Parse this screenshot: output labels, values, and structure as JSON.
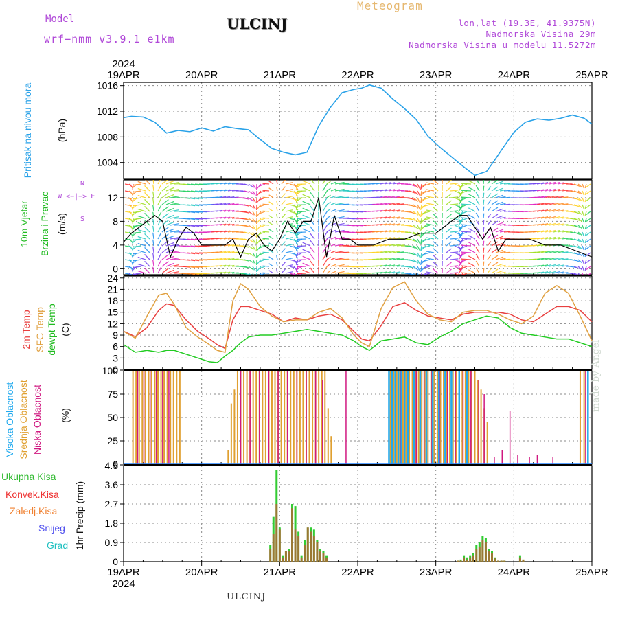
{
  "header": {
    "model_label": "Model",
    "model_name": "wrf−nmm_v3.9.1  e1km",
    "title": "ULCINJ",
    "meteogram_label": "Meteogram",
    "lonlat": "lon,lat (19.3E, 41.9375N)",
    "altitude": "Nadmorska Visina 29m",
    "model_altitude": "Nadmorska Visina u modelu 11.5272m"
  },
  "footer_city": "ULCINJ",
  "watermark": "made by Angel",
  "colors": {
    "pressure": "#2aa2e8",
    "temp2m": "#e84040",
    "sfctemp": "#e0a040",
    "dewpt": "#22cc22",
    "high_cloud": "#22aaee",
    "mid_cloud": "#e0a030",
    "low_cloud": "#d01880",
    "total_precip": "#33cc33",
    "conv_precip": "#ee3333",
    "strat_precip": "#f08030",
    "snow": "#5050ee",
    "graupel": "#20c0c0",
    "grid": "#888888"
  },
  "time_axis": {
    "year": "2024",
    "ticks": [
      "19APR",
      "20APR",
      "21APR",
      "22APR",
      "23APR",
      "24APR",
      "25APR"
    ]
  },
  "panels": {
    "pressure": {
      "label": "Pritisak na nivou mora",
      "unit": "(hPa)",
      "ticks": [
        1004,
        1008,
        1012,
        1016
      ]
    },
    "wind": {
      "label_1": "10m Vjetar",
      "label_2": "Brzina i Pravac",
      "unit": "(m/s)",
      "ticks": [
        0,
        4,
        8,
        12
      ],
      "compass_n": "N",
      "compass_s": "S",
      "compass_w": "W",
      "compass_e": "E",
      "compass_arrows": "<−|−>"
    },
    "temperature": {
      "label_1": "2m Temp",
      "label_2": "SFC Temp",
      "label_3": "dewpt Temp",
      "unit": "(C)",
      "ticks": [
        0,
        3,
        6,
        9,
        12,
        15,
        18,
        21,
        24
      ]
    },
    "cloud": {
      "label_1": "Visoka Oblacnost",
      "label_2": "Srednja Oblacnost",
      "label_3": "Niska Oblacnost",
      "unit": "(%)",
      "ticks": [
        0,
        25,
        50,
        75,
        100
      ]
    },
    "precip": {
      "label": "1hr Precip (mm)",
      "ticks": [
        0,
        0.9,
        1.8,
        2.7,
        3.6,
        4.5
      ],
      "legend": [
        "Ukupna Kisa",
        "Konvek.Kisa",
        "Zaledj.Kisa",
        "Snijeg",
        "Grad"
      ]
    }
  },
  "chart_data": [
    {
      "type": "line",
      "title": "",
      "xlabel": "",
      "ylabel": "Pritisak na nivou mora (hPa)",
      "x_unit": "days after 19APR 00Z",
      "ylim": [
        1001.5,
        1016.5
      ],
      "series": [
        {
          "name": "Pritisak na nivou mora",
          "x": [
            0,
            0.1,
            0.25,
            0.4,
            0.55,
            0.7,
            0.85,
            1.0,
            1.15,
            1.3,
            1.45,
            1.6,
            1.75,
            1.9,
            2.05,
            2.2,
            2.35,
            2.5,
            2.65,
            2.8,
            2.95,
            3.05,
            3.15,
            3.3,
            3.45,
            3.6,
            3.75,
            3.9,
            4.05,
            4.2,
            4.35,
            4.5,
            4.65,
            4.75,
            4.85,
            5.0,
            5.15,
            5.3,
            5.45,
            5.6,
            5.75,
            5.9,
            6.0
          ],
          "values": [
            1011,
            1011.2,
            1011.1,
            1010.3,
            1008.6,
            1009,
            1008.8,
            1009.4,
            1008.9,
            1009.6,
            1009.3,
            1009.1,
            1007.6,
            1006.2,
            1005.6,
            1005.2,
            1005.6,
            1009.7,
            1012.6,
            1014.9,
            1015.4,
            1015.6,
            1016.1,
            1015.6,
            1013.9,
            1012.4,
            1010.7,
            1008.1,
            1006.4,
            1004.9,
            1003.4,
            1002,
            1002.6,
            1004.3,
            1006.1,
            1008.7,
            1010.3,
            1010.8,
            1010.6,
            1010.9,
            1011.4,
            1010.9,
            1010
          ]
        }
      ],
      "grid": true
    },
    {
      "type": "line",
      "title": "",
      "xlabel": "",
      "ylabel": "10m Vjetar Brzina i Pravac (m/s)",
      "x_unit": "days after 19APR 00Z",
      "ylim": [
        -1,
        15
      ],
      "series": [
        {
          "name": "10m Vjetar",
          "x": [
            0,
            0.1,
            0.2,
            0.3,
            0.4,
            0.5,
            0.6,
            0.7,
            0.8,
            0.9,
            1.0,
            1.1,
            1.2,
            1.3,
            1.4,
            1.5,
            1.6,
            1.7,
            1.8,
            1.9,
            2.0,
            2.1,
            2.2,
            2.3,
            2.4,
            2.5,
            2.6,
            2.7,
            2.8,
            2.9,
            3.0,
            3.2,
            3.4,
            3.6,
            3.8,
            4.0,
            4.2,
            4.3,
            4.4,
            4.5,
            4.6,
            4.7,
            4.8,
            4.9,
            5.0,
            5.2,
            5.4,
            5.6,
            5.8,
            6.0
          ],
          "values": [
            4.5,
            6,
            7,
            8,
            9,
            8,
            2,
            5,
            7,
            6,
            4,
            4,
            4,
            4,
            5,
            2,
            5,
            6,
            4,
            3,
            5,
            8,
            6,
            8,
            8,
            12,
            2,
            9,
            5,
            5,
            4,
            4,
            5,
            5,
            6,
            6,
            8,
            9,
            9,
            7,
            5,
            7,
            3,
            5,
            5,
            5,
            4,
            4,
            3,
            2
          ]
        }
      ],
      "grid": true
    },
    {
      "type": "line",
      "title": "",
      "xlabel": "",
      "ylabel": "Temp (C)",
      "x_unit": "days after 19APR 00Z",
      "ylim": [
        0,
        24.5
      ],
      "series": [
        {
          "name": "2m Temp",
          "x": [
            0,
            0.15,
            0.3,
            0.45,
            0.55,
            0.65,
            0.8,
            0.95,
            1.1,
            1.2,
            1.3,
            1.4,
            1.5,
            1.6,
            1.75,
            1.9,
            2.05,
            2.2,
            2.35,
            2.5,
            2.65,
            2.8,
            2.95,
            3.05,
            3.15,
            3.3,
            3.45,
            3.6,
            3.75,
            3.9,
            4.05,
            4.2,
            4.35,
            4.5,
            4.65,
            4.8,
            4.95,
            5.1,
            5.25,
            5.4,
            5.55,
            5.7,
            5.85,
            6.0
          ],
          "values": [
            10,
            8.6,
            11,
            15.5,
            17.2,
            16.8,
            13,
            10,
            8,
            6.5,
            5.5,
            13,
            16.5,
            16.5,
            15.5,
            14.5,
            12.5,
            13.5,
            13,
            14,
            14.5,
            13,
            10,
            8,
            7.5,
            11.5,
            16.5,
            17.5,
            15.5,
            14,
            13.5,
            13,
            14.5,
            15,
            15,
            15,
            14.5,
            13,
            12.5,
            14.5,
            16.5,
            16.5,
            15.5,
            12.5
          ]
        },
        {
          "name": "SFC Temp",
          "x": [
            0,
            0.15,
            0.3,
            0.45,
            0.55,
            0.65,
            0.8,
            0.95,
            1.1,
            1.2,
            1.3,
            1.4,
            1.5,
            1.6,
            1.75,
            1.9,
            2.05,
            2.2,
            2.35,
            2.5,
            2.65,
            2.8,
            2.95,
            3.05,
            3.15,
            3.3,
            3.45,
            3.6,
            3.75,
            3.9,
            4.05,
            4.2,
            4.35,
            4.5,
            4.65,
            4.8,
            4.95,
            5.1,
            5.25,
            5.4,
            5.55,
            5.7,
            5.85,
            6.0
          ],
          "values": [
            10,
            8.2,
            14,
            19.5,
            20,
            17,
            11,
            8.5,
            6.5,
            5,
            4.5,
            18,
            22.5,
            21,
            16.5,
            14,
            12.5,
            13,
            13,
            15,
            16,
            13.5,
            9,
            7,
            6,
            16,
            21.5,
            23,
            18,
            14.5,
            13,
            12.5,
            15,
            15.5,
            15.5,
            14.5,
            13,
            12,
            14,
            20,
            22,
            20,
            14,
            7.5
          ]
        },
        {
          "name": "dewpt Temp",
          "x": [
            0,
            0.15,
            0.3,
            0.45,
            0.55,
            0.65,
            0.8,
            0.95,
            1.1,
            1.2,
            1.3,
            1.4,
            1.5,
            1.6,
            1.75,
            1.9,
            2.05,
            2.2,
            2.35,
            2.5,
            2.65,
            2.8,
            2.95,
            3.05,
            3.15,
            3.3,
            3.45,
            3.6,
            3.75,
            3.9,
            4.05,
            4.2,
            4.35,
            4.5,
            4.65,
            4.8,
            4.95,
            5.1,
            5.25,
            5.4,
            5.55,
            5.7,
            5.85,
            6.0
          ],
          "values": [
            6.5,
            4.5,
            5,
            4.5,
            5,
            5,
            4,
            3,
            2,
            1.8,
            3.5,
            5,
            7,
            8.5,
            9,
            9,
            9.5,
            10,
            10.5,
            10,
            9.5,
            9,
            7.5,
            6,
            5,
            7.5,
            8,
            8.5,
            7,
            6.5,
            8.5,
            10,
            12,
            13,
            14,
            13.5,
            11,
            9.5,
            9,
            8.5,
            8,
            8,
            7,
            6
          ]
        }
      ],
      "grid": true
    },
    {
      "type": "bar",
      "title": "",
      "xlabel": "",
      "ylabel": "Oblacnost (%)",
      "x_unit": "days after 19APR 00Z",
      "ylim": [
        0,
        100
      ],
      "series": [
        {
          "name": "Srednja Oblacnost",
          "x": [
            0.12,
            0.16,
            0.2,
            0.24,
            0.28,
            0.32,
            0.36,
            0.4,
            0.44,
            0.48,
            0.52,
            0.56,
            0.6,
            0.64,
            0.68,
            0.72,
            1.34,
            1.38,
            1.42,
            1.46,
            1.5,
            1.54,
            1.58,
            1.62,
            1.66,
            1.7,
            1.74,
            1.78,
            1.82,
            1.86,
            1.9,
            1.94,
            1.98,
            2.02,
            2.06,
            2.1,
            2.14,
            2.18,
            2.22,
            2.26,
            2.3,
            2.34,
            2.38,
            2.42,
            2.46,
            2.5,
            2.54,
            2.58,
            2.62,
            2.66,
            3.42,
            3.46,
            3.5,
            3.54,
            3.58,
            3.62,
            3.66,
            3.7,
            3.74,
            3.78,
            3.82,
            3.86,
            3.9,
            3.94,
            3.98,
            4.02,
            4.06,
            4.1,
            4.14,
            4.18,
            4.22,
            4.26,
            4.3,
            4.34,
            4.38,
            4.42,
            4.46,
            4.5,
            4.54,
            4.58,
            4.62,
            4.66,
            5.85,
            5.9,
            5.95
          ],
          "values": [
            100,
            100,
            100,
            100,
            100,
            100,
            100,
            100,
            100,
            100,
            100,
            100,
            100,
            100,
            100,
            100,
            15,
            65,
            80,
            100,
            100,
            100,
            100,
            100,
            100,
            100,
            100,
            100,
            100,
            100,
            100,
            100,
            100,
            100,
            100,
            100,
            100,
            100,
            100,
            100,
            100,
            100,
            100,
            100,
            100,
            100,
            100,
            100,
            60,
            30,
            100,
            100,
            100,
            100,
            100,
            100,
            100,
            100,
            100,
            100,
            100,
            100,
            100,
            100,
            100,
            100,
            100,
            100,
            100,
            100,
            100,
            100,
            100,
            100,
            100,
            100,
            100,
            100,
            90,
            80,
            60,
            45,
            100,
            100,
            100
          ]
        },
        {
          "name": "Niska Oblacnost",
          "x": [
            0.18,
            0.26,
            0.34,
            0.42,
            0.5,
            0.58,
            1.5,
            1.62,
            1.74,
            1.86,
            1.98,
            2.1,
            2.22,
            2.34,
            2.46,
            2.55,
            2.85,
            3.45,
            3.55,
            3.65,
            3.75,
            3.85,
            3.95,
            4.05,
            4.15,
            4.25,
            4.35,
            4.45,
            4.55,
            4.62,
            4.75,
            4.85,
            4.95,
            5.05,
            5.2,
            5.3,
            5.5,
            5.92
          ],
          "values": [
            100,
            100,
            100,
            100,
            100,
            100,
            100,
            100,
            100,
            100,
            100,
            100,
            100,
            100,
            100,
            90,
            100,
            100,
            100,
            100,
            100,
            100,
            100,
            100,
            100,
            100,
            100,
            100,
            90,
            75,
            8,
            15,
            57,
            10,
            8,
            10,
            8,
            100
          ]
        },
        {
          "name": "Visoka Oblacnost",
          "x": [
            3.4,
            3.44,
            3.48,
            3.52,
            3.56,
            3.6,
            3.64,
            3.72,
            3.8,
            3.88,
            3.96,
            4.04,
            4.12,
            4.2,
            4.3,
            4.4,
            5.95
          ],
          "values": [
            100,
            100,
            100,
            100,
            100,
            100,
            100,
            100,
            100,
            100,
            100,
            100,
            100,
            100,
            100,
            100,
            100
          ]
        }
      ],
      "grid": true
    },
    {
      "type": "bar",
      "title": "",
      "xlabel": "",
      "ylabel": "1hr Precip (mm)",
      "x_unit": "days after 19APR 00Z",
      "ylim": [
        0,
        4.5
      ],
      "series": [
        {
          "name": "Ukupna Kisa",
          "x": [
            1.88,
            1.92,
            1.96,
            2.0,
            2.04,
            2.08,
            2.12,
            2.16,
            2.2,
            2.24,
            2.28,
            2.32,
            2.36,
            2.4,
            2.44,
            2.48,
            2.52,
            2.56,
            2.6,
            4.28,
            4.32,
            4.36,
            4.4,
            4.44,
            4.48,
            4.52,
            4.56,
            4.6,
            4.64,
            4.68,
            4.72,
            4.76,
            4.8,
            4.84,
            4.88,
            5.08,
            5.12
          ],
          "values": [
            0.8,
            2.1,
            4.3,
            1.6,
            0.3,
            0.5,
            0.6,
            2.7,
            2.6,
            1.4,
            0.3,
            1.0,
            1.6,
            1.6,
            1.5,
            1.0,
            0.6,
            0.5,
            0.3,
            0.05,
            0.1,
            0.3,
            0.2,
            0.3,
            0.4,
            0.8,
            0.9,
            1.2,
            1.1,
            0.6,
            0.5,
            0.2,
            0.05,
            0.05,
            0.05,
            0.3,
            0.1
          ]
        },
        {
          "name": "Konvek.Kisa",
          "x": [
            1.88,
            1.92,
            1.96,
            2.0,
            2.04,
            2.08,
            2.12,
            2.16,
            2.2,
            2.24,
            2.28,
            2.32,
            2.36,
            2.4,
            2.44,
            2.48,
            2.52,
            2.56,
            2.6,
            4.28,
            4.32,
            4.36,
            4.4,
            4.44,
            4.48,
            4.52,
            4.56,
            4.6,
            4.64,
            4.68,
            4.72,
            4.76,
            4.8,
            4.84,
            4.88,
            5.08,
            5.12
          ],
          "values": [
            0.6,
            1.3,
            2.7,
            1.5,
            0.2,
            0.5,
            0.5,
            2.5,
            1.5,
            1.2,
            0.2,
            0.8,
            1.6,
            1.4,
            1.2,
            0.9,
            0.5,
            0.4,
            0.2,
            0.05,
            0.05,
            0.2,
            0.1,
            0.2,
            0.3,
            0.6,
            0.7,
            1.0,
            0.9,
            0.5,
            0.4,
            0.15,
            0.05,
            0.05,
            0.05,
            0.2,
            0.1
          ]
        }
      ],
      "grid": true
    }
  ]
}
